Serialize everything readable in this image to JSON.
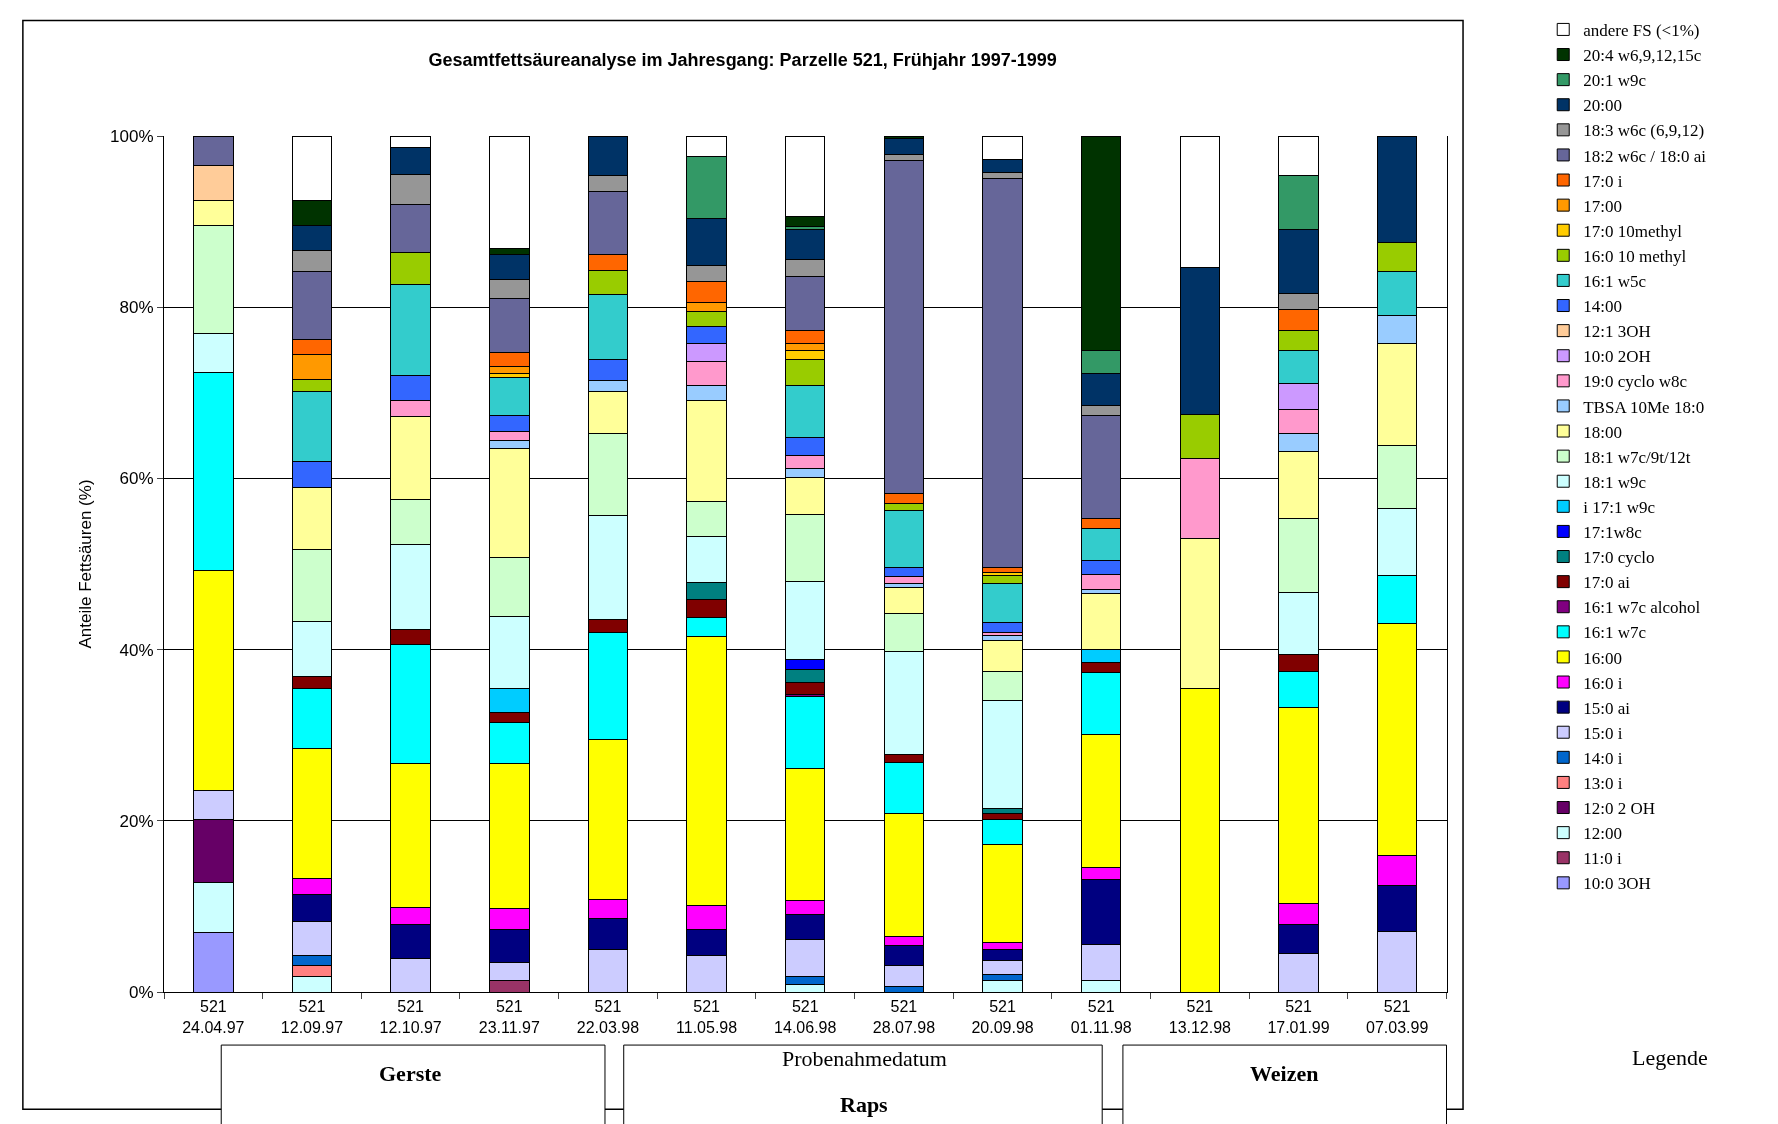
{
  "chart_data": {
    "type": "bar",
    "stacked": true,
    "title": "Gesamtfettsäureanalyse im Jahresgang: Parzelle 521, Frühjahr 1997-1999",
    "xlabel": "Probenahmedatum",
    "ylabel": "Anteile Fettsäuren (%)",
    "annotations": [
      "Gerste",
      "Raps",
      "Weizen",
      "Legende"
    ],
    "categories": [
      "521\n24.04.97",
      "521\n12.09.97",
      "521\n12.10.97",
      "521\n23.11.97",
      "521\n22.03.98",
      "521\n11.05.98",
      "521\n14.06.98",
      "521\n28.07.98",
      "521\n20.09.98",
      "521\n01.11.98",
      "521\n13.12.98",
      "521\n17.01.99",
      "521\n07.03.99"
    ],
    "ylim": [
      0,
      100
    ],
    "yticks": [
      {
        "value": 0,
        "label": "0%"
      },
      {
        "value": 20,
        "label": "20%"
      },
      {
        "value": 40,
        "label": "40%"
      },
      {
        "value": 60,
        "label": "60%"
      },
      {
        "value": 80,
        "label": "80%"
      },
      {
        "value": 100,
        "label": "100%"
      }
    ],
    "grid": "y",
    "legend": "right",
    "series": [
      {
        "name": "10:0 3OH",
        "color": "#9999ff",
        "values": [
          6.9,
          null,
          null,
          null,
          null,
          null,
          null,
          null,
          null,
          null,
          null,
          null,
          null
        ]
      },
      {
        "name": "11:0 i",
        "color": "#993366",
        "values": [
          null,
          null,
          null,
          1.3,
          null,
          null,
          null,
          null,
          null,
          null,
          null,
          null,
          null
        ]
      },
      {
        "name": "12:00",
        "color": "#ccffff",
        "values": [
          5.9,
          1.8,
          null,
          null,
          null,
          null,
          0.9,
          null,
          1.4,
          1.3,
          null,
          null,
          null
        ]
      },
      {
        "name": "12:0 2 OH",
        "color": "#660066",
        "values": [
          7.3,
          null,
          null,
          null,
          null,
          null,
          null,
          null,
          null,
          null,
          null,
          null,
          null
        ]
      },
      {
        "name": "13:0 i",
        "color": "#ff8080",
        "values": [
          null,
          1.3,
          null,
          null,
          null,
          null,
          null,
          null,
          null,
          null,
          null,
          null,
          null
        ]
      },
      {
        "name": "14:0 i",
        "color": "#0066cc",
        "values": [
          null,
          1.2,
          null,
          null,
          null,
          null,
          0.9,
          0.7,
          0.6,
          null,
          null,
          null,
          null
        ]
      },
      {
        "name": "15:0 i",
        "color": "#ccccff",
        "values": [
          3.4,
          3.9,
          3.9,
          2.2,
          5.0,
          4.3,
          4.3,
          2.4,
          1.7,
          4.3,
          null,
          4.5,
          7.1
        ]
      },
      {
        "name": "15:0 ai",
        "color": "#000080",
        "values": [
          null,
          3.2,
          4.0,
          3.8,
          3.6,
          3.0,
          2.9,
          2.3,
          1.3,
          7.5,
          null,
          3.4,
          5.4
        ]
      },
      {
        "name": "16:0 i",
        "color": "#ff00ff",
        "values": [
          null,
          1.9,
          2.0,
          2.4,
          2.2,
          2.8,
          1.7,
          1.1,
          0.8,
          1.5,
          null,
          2.4,
          3.5
        ]
      },
      {
        "name": "16:00",
        "color": "#ffff00",
        "values": [
          25.7,
          15.1,
          16.8,
          17.0,
          18.7,
          31.4,
          15.4,
          14.4,
          11.4,
          15.5,
          35.5,
          22.9,
          27.0
        ]
      },
      {
        "name": "16:1 w7c",
        "color": "#00ffff",
        "values": [
          23.2,
          7.0,
          13.9,
          4.8,
          12.5,
          2.3,
          8.4,
          5.9,
          3.0,
          7.2,
          null,
          4.3,
          5.6
        ]
      },
      {
        "name": "16:1 w7c alcohol",
        "color": "#800080",
        "values": [
          null,
          null,
          null,
          null,
          null,
          null,
          0.3,
          null,
          null,
          null,
          null,
          null,
          null
        ]
      },
      {
        "name": "17:0 ai",
        "color": "#800000",
        "values": [
          null,
          1.5,
          1.8,
          1.2,
          1.5,
          2.0,
          1.3,
          1.0,
          0.7,
          1.2,
          null,
          1.9,
          null
        ]
      },
      {
        "name": "17:0 cyclo",
        "color": "#008080",
        "values": [
          null,
          null,
          null,
          null,
          null,
          2.0,
          1.6,
          null,
          0.5,
          null,
          null,
          null,
          null
        ]
      },
      {
        "name": "17:1w8c",
        "color": "#0000ff",
        "values": [
          null,
          null,
          null,
          null,
          null,
          null,
          1.1,
          null,
          null,
          null,
          null,
          null,
          null
        ]
      },
      {
        "name": "i 17:1 w9c",
        "color": "#00ccff",
        "values": [
          null,
          null,
          null,
          2.8,
          null,
          null,
          null,
          null,
          null,
          1.5,
          null,
          null,
          null
        ]
      },
      {
        "name": "18:1 w9c",
        "color": "#ccffff",
        "values": [
          4.5,
          6.4,
          9.9,
          8.4,
          12.2,
          5.4,
          9.2,
          12.0,
          12.7,
          null,
          null,
          7.3,
          7.9
        ]
      },
      {
        "name": "18:1 w7c/9t/12t",
        "color": "#ccffcc",
        "values": [
          12.7,
          8.4,
          5.2,
          6.9,
          9.5,
          4.1,
          7.8,
          4.4,
          3.4,
          null,
          null,
          8.6,
          7.4
        ]
      },
      {
        "name": "18:00",
        "color": "#ffff99",
        "values": [
          2.9,
          7.2,
          9.7,
          12.7,
          4.9,
          11.8,
          4.3,
          3.0,
          3.6,
          6.6,
          17.5,
          7.8,
          11.9
        ]
      },
      {
        "name": "TBSA 10Me 18:0",
        "color": "#99ccff",
        "values": [
          null,
          null,
          null,
          0.9,
          1.3,
          1.8,
          1.1,
          0.5,
          0.5,
          0.4,
          null,
          2.1,
          3.2
        ]
      },
      {
        "name": "19:0 cyclo w8c",
        "color": "#ff99cc",
        "values": [
          null,
          null,
          1.9,
          1.1,
          null,
          2.8,
          1.5,
          0.8,
          0.4,
          1.8,
          9.3,
          2.8,
          null
        ]
      },
      {
        "name": "10:0 2OH",
        "color": "#cc99ff",
        "values": [
          null,
          null,
          null,
          null,
          null,
          2.1,
          null,
          null,
          null,
          null,
          null,
          3.1,
          null
        ]
      },
      {
        "name": "12:1 3OH",
        "color": "#ffcc99",
        "values": [
          4.0,
          null,
          null,
          null,
          null,
          null,
          null,
          null,
          null,
          null,
          null,
          null,
          null
        ]
      },
      {
        "name": "14:00",
        "color": "#3366ff",
        "values": [
          null,
          3.1,
          2.9,
          1.8,
          2.5,
          2.0,
          2.1,
          1.1,
          1.2,
          1.6,
          null,
          null,
          null
        ]
      },
      {
        "name": "16:1 w5c",
        "color": "#33cccc",
        "values": [
          null,
          8.1,
          10.6,
          4.5,
          7.6,
          null,
          6.1,
          6.6,
          4.5,
          3.8,
          null,
          3.9,
          5.2
        ]
      },
      {
        "name": "16:0 10 methyl",
        "color": "#99cc00",
        "values": [
          null,
          1.5,
          3.8,
          null,
          2.8,
          1.7,
          3.0,
          0.9,
          1.0,
          null,
          5.2,
          2.3,
          3.4
        ]
      },
      {
        "name": "17:0 10methyl",
        "color": "#ffcc00",
        "values": [
          null,
          null,
          null,
          0.5,
          null,
          null,
          1.0,
          null,
          0.3,
          null,
          null,
          null,
          null
        ]
      },
      {
        "name": "17:00",
        "color": "#ff9900",
        "values": [
          null,
          2.9,
          null,
          0.8,
          null,
          1.1,
          0.9,
          null,
          null,
          null,
          null,
          null,
          null
        ]
      },
      {
        "name": "17:0 i",
        "color": "#ff6600",
        "values": [
          null,
          1.7,
          null,
          1.6,
          1.9,
          2.4,
          1.5,
          1.1,
          0.6,
          1.1,
          null,
          2.4,
          null
        ]
      },
      {
        "name": "18:2 w6c / 18:0 ai",
        "color": "#666699",
        "values": [
          3.5,
          8.0,
          5.6,
          6.3,
          7.3,
          null,
          6.3,
          38.9,
          45.4,
          12.0,
          null,
          null,
          null
        ]
      },
      {
        "name": "18:3 w6c (6,9,12)",
        "color": "#969696",
        "values": [
          null,
          2.4,
          3.5,
          2.2,
          1.9,
          1.9,
          2.0,
          0.7,
          0.7,
          1.2,
          null,
          1.9,
          null
        ]
      },
      {
        "name": "20:00",
        "color": "#003366",
        "values": [
          null,
          2.9,
          3.1,
          3.0,
          4.6,
          5.5,
          3.5,
          1.9,
          1.6,
          3.8,
          17.1,
          7.5,
          12.4
        ]
      },
      {
        "name": "20:1 w9c",
        "color": "#339966",
        "values": [
          null,
          null,
          null,
          null,
          null,
          7.2,
          0.3,
          null,
          null,
          2.7,
          null,
          6.3,
          null
        ]
      },
      {
        "name": "20:4 w6,9,12,15c",
        "color": "#003300",
        "values": [
          null,
          3.0,
          null,
          0.7,
          null,
          null,
          1.2,
          0.3,
          null,
          25.0,
          null,
          null,
          null
        ]
      },
      {
        "name": "andere FS (<1%)",
        "color": "#ffffff",
        "values": [
          null,
          7.5,
          1.4,
          13.1,
          null,
          2.4,
          9.4,
          null,
          2.7,
          null,
          15.4,
          4.6,
          null
        ]
      }
    ]
  }
}
